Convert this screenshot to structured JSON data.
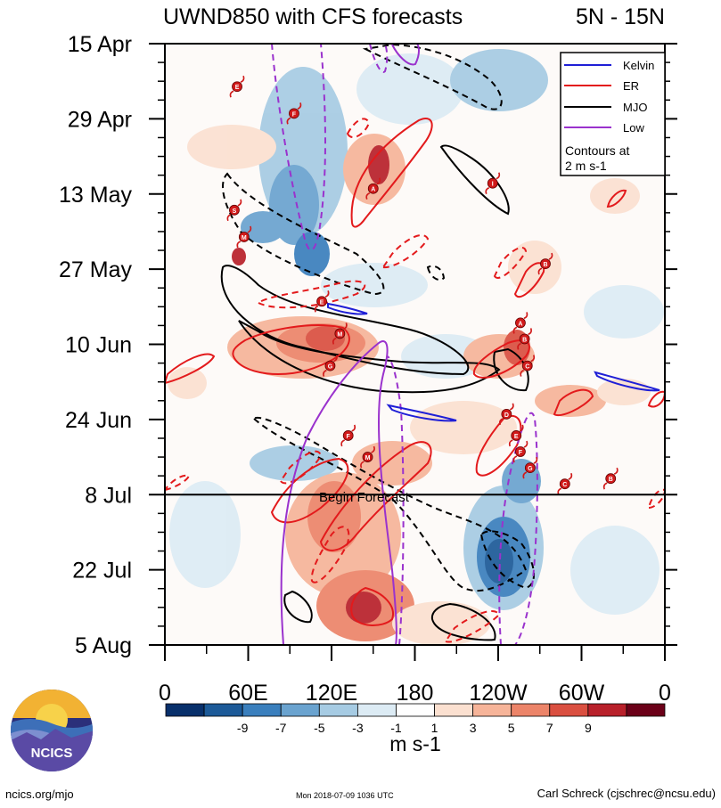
{
  "chart_data": {
    "type": "heatmap",
    "title": "UWND850 with CFS forecasts",
    "region_label": "5N - 15N",
    "time_axis": {
      "tick_labels": [
        "15 Apr",
        "29 Apr",
        "13 May",
        "27 May",
        "10 Jun",
        "24 Jun",
        "8 Jul",
        "22 Jul",
        "5 Aug"
      ],
      "start_day": 0,
      "end_day": 112,
      "tick_days": [
        0,
        14,
        28,
        42,
        56,
        70,
        84,
        98,
        112
      ]
    },
    "lon_axis": {
      "tick_labels": [
        "0",
        "60E",
        "120E",
        "180",
        "120W",
        "60W",
        "0"
      ],
      "tick_lons": [
        0,
        60,
        120,
        180,
        240,
        300,
        360
      ],
      "range": [
        0,
        360
      ]
    },
    "forecast_line": {
      "label": "Begin Forecast",
      "day": 84
    },
    "legend": {
      "entries": [
        {
          "name": "Kelvin",
          "color": "#1f1fd6"
        },
        {
          "name": "ER",
          "color": "#e31a1c"
        },
        {
          "name": "MJO",
          "color": "#000000"
        },
        {
          "name": "Low",
          "color": "#9a32cd"
        }
      ],
      "note_line1": "Contours at",
      "note_line2": "2 m s-1",
      "position": "top-right"
    },
    "colorbar": {
      "unit": "m s-1",
      "tick_labels": [
        "-9",
        "-7",
        "-5",
        "-3",
        "-1",
        "1",
        "3",
        "5",
        "7",
        "9"
      ],
      "colors": [
        "#08306b",
        "#1c5a98",
        "#3a7fbd",
        "#6aa3cf",
        "#a6cbe3",
        "#dcebf4",
        "#ffffff",
        "#fbe0d0",
        "#f6b499",
        "#ec8469",
        "#da4f40",
        "#b8202a",
        "#6b0018"
      ]
    },
    "cyclones": [
      {
        "label": "E",
        "lon": 52,
        "day": 8
      },
      {
        "label": "F",
        "lon": 93,
        "day": 13
      },
      {
        "label": "S",
        "lon": 50,
        "day": 31
      },
      {
        "label": "M",
        "lon": 57,
        "day": 36
      },
      {
        "label": "A",
        "lon": 150,
        "day": 27
      },
      {
        "label": "I",
        "lon": 236,
        "day": 26
      },
      {
        "label": "B",
        "lon": 274,
        "day": 41
      },
      {
        "label": "E",
        "lon": 113,
        "day": 48
      },
      {
        "label": "M",
        "lon": 126,
        "day": 54
      },
      {
        "label": "G",
        "lon": 119,
        "day": 60
      },
      {
        "label": "A",
        "lon": 256,
        "day": 52
      },
      {
        "label": "B",
        "lon": 259,
        "day": 55
      },
      {
        "label": "C",
        "lon": 261,
        "day": 60
      },
      {
        "label": "D",
        "lon": 246,
        "day": 69
      },
      {
        "label": "E",
        "lon": 253,
        "day": 73
      },
      {
        "label": "F",
        "lon": 256,
        "day": 76
      },
      {
        "label": "G",
        "lon": 263,
        "day": 79
      },
      {
        "label": "C",
        "lon": 288,
        "day": 82
      },
      {
        "label": "B",
        "lon": 321,
        "day": 81
      },
      {
        "label": "F",
        "lon": 132,
        "day": 73
      },
      {
        "label": "M",
        "lon": 146,
        "day": 77
      }
    ]
  },
  "footer": {
    "left": "ncics.org/mjo",
    "middle": "Mon 2018-07-09 1036 UTC",
    "right": "Carl Schreck (cjschrec@ncsu.edu)"
  },
  "logo": {
    "text": "NCICS"
  }
}
